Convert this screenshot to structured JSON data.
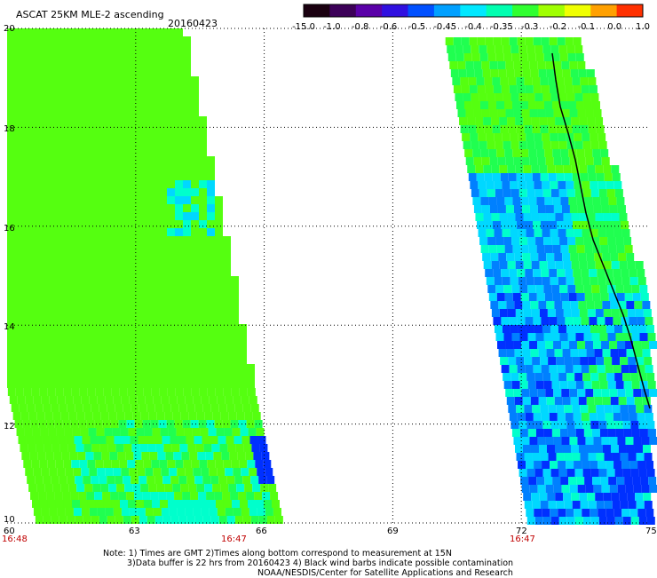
{
  "header": {
    "title": "ASCAT 25KM MLE-2 ascending",
    "date": "20160423"
  },
  "colorbar": {
    "ticks": [
      "-15.0",
      "-1.0",
      "-0.8",
      "-0.6",
      "-0.5",
      "-0.45",
      "-0.4",
      "-0.35",
      "-0.3",
      "-0.2",
      "-0.1",
      "0.0",
      "1.0"
    ],
    "colors": [
      "#1a0010",
      "#3c0058",
      "#5a00a8",
      "#3010e0",
      "#0050ff",
      "#00a0ff",
      "#00e8ff",
      "#00ffb0",
      "#30ff30",
      "#a0ff00",
      "#f0ff00",
      "#ffa000",
      "#ff3000"
    ]
  },
  "axes": {
    "x_ticks": [
      "60",
      "63",
      "66",
      "69",
      "72",
      "75"
    ],
    "y_ticks": [
      "10",
      "12",
      "14",
      "16",
      "18",
      "20"
    ],
    "x_range": [
      60,
      75
    ],
    "y_range": [
      10,
      20
    ]
  },
  "times": {
    "t1": "16:48",
    "t2": "16:47",
    "t3": "16:47"
  },
  "notes": {
    "line1": "Note: 1) Times are GMT 2)Times along bottom correspond to measurement at 15N",
    "line2": "3)Data buffer is 22 hrs from 20160423 4) Black wind barbs indicate possible contamination",
    "line3": "NOAA/NESDIS/Center for Satellite Applications and Research"
  },
  "colors": {
    "swath_green_yellow": "#99ff00",
    "swath_green": "#33ff33",
    "swath_cyan": "#00ffff",
    "swath_blue": "#0055ff",
    "coast": "#000000"
  }
}
